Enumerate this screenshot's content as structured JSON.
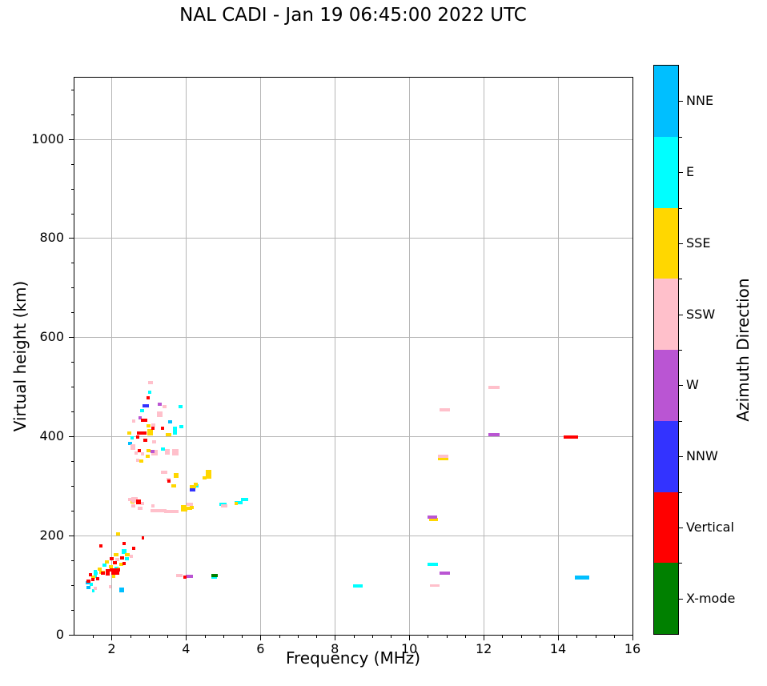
{
  "title": "NAL CADI - Jan 19 06:45:00 2022 UTC",
  "chart_data": {
    "type": "scatter",
    "title": "NAL CADI - Jan 19 06:45:00 2022 UTC",
    "xlabel": "Frequency (MHz)",
    "ylabel": "Virtual height (km)",
    "xlim": [
      1,
      16
    ],
    "ylim": [
      0,
      1124
    ],
    "xticks": [
      2,
      4,
      6,
      8,
      10,
      12,
      14,
      16
    ],
    "yticks": [
      0,
      200,
      400,
      600,
      800,
      1000
    ],
    "x_minor_step_mhz": 0.5,
    "y_minor_step_km": 50,
    "grid": true,
    "grid_color": "#b6b6b6",
    "marker": "square",
    "colorbar": {
      "label": "Azimuth Direction",
      "entries_top_to_bottom": [
        {
          "label": "NNE",
          "color": "#00BFFF"
        },
        {
          "label": "E",
          "color": "#00FFFF"
        },
        {
          "label": "SSE",
          "color": "#FFD700"
        },
        {
          "label": "SSW",
          "color": "#FFC0CB"
        },
        {
          "label": "W",
          "color": "#BA55D3"
        },
        {
          "label": "NNW",
          "color": "#3333FF"
        },
        {
          "label": "Vertical",
          "color": "#FF0000"
        },
        {
          "label": "X-mode",
          "color": "#008000"
        }
      ]
    },
    "series": [
      {
        "name": "NNE",
        "color": "#00BFFF",
        "points": [
          [
            3.58,
            429,
            5
          ],
          [
            2.5,
            386,
            5
          ],
          [
            1.35,
            104,
            5
          ],
          [
            1.38,
            95,
            5
          ],
          [
            2.28,
            90,
            6,
            6
          ],
          [
            14.65,
            114,
            18,
            5
          ]
        ]
      },
      {
        "name": "E",
        "color": "#00FFFF",
        "points": [
          [
            3.02,
            489,
            4
          ],
          [
            3.86,
            460,
            5
          ],
          [
            2.81,
            451,
            5
          ],
          [
            3.88,
            420,
            5
          ],
          [
            3.7,
            412,
            5,
            10
          ],
          [
            2.55,
            397,
            4
          ],
          [
            3.37,
            374,
            5
          ],
          [
            4.28,
            300,
            5
          ],
          [
            5.0,
            262,
            9
          ],
          [
            5.42,
            266,
            10
          ],
          [
            5.57,
            272,
            9
          ],
          [
            2.33,
            167,
            6,
            6
          ],
          [
            2.42,
            152,
            5
          ],
          [
            1.8,
            139,
            5
          ],
          [
            2.14,
            134,
            5
          ],
          [
            1.56,
            124,
            5
          ],
          [
            1.55,
            127,
            4
          ],
          [
            1.55,
            117,
            4
          ],
          [
            1.45,
            101,
            4
          ],
          [
            1.5,
            88,
            3
          ],
          [
            4.76,
            115,
            7,
            3
          ],
          [
            8.62,
            97,
            12,
            4
          ],
          [
            10.62,
            141,
            13,
            4
          ]
        ]
      },
      {
        "name": "SSE",
        "color": "#FFD700",
        "points": [
          [
            3.0,
            421,
            5
          ],
          [
            2.48,
            407,
            5
          ],
          [
            3.04,
            408,
            7,
            8
          ],
          [
            3.52,
            403,
            7
          ],
          [
            2.98,
            371,
            5
          ],
          [
            2.97,
            359,
            5
          ],
          [
            2.79,
            350,
            5
          ],
          [
            3.73,
            320,
            6,
            6
          ],
          [
            3.67,
            300,
            6
          ],
          [
            4.6,
            323,
            7,
            11
          ],
          [
            4.5,
            316,
            5
          ],
          [
            4.27,
            303,
            5
          ],
          [
            4.18,
            298,
            8
          ],
          [
            3.95,
            252,
            8
          ],
          [
            4.05,
            254,
            10
          ],
          [
            3.93,
            258,
            7
          ],
          [
            4.15,
            256,
            5
          ],
          [
            2.55,
            268,
            5
          ],
          [
            5.35,
            265,
            4
          ],
          [
            2.18,
            203,
            5
          ],
          [
            2.12,
            160,
            6
          ],
          [
            2.42,
            161,
            6
          ],
          [
            1.88,
            147,
            5
          ],
          [
            2.25,
            142,
            5
          ],
          [
            1.97,
            136,
            5
          ],
          [
            1.67,
            131,
            5
          ],
          [
            2.18,
            131,
            4
          ],
          [
            1.5,
            115,
            5
          ],
          [
            1.75,
            125,
            7
          ],
          [
            2.05,
            117,
            4
          ],
          [
            10.9,
            355,
            13,
            4
          ],
          [
            10.65,
            232,
            11,
            4
          ]
        ]
      },
      {
        "name": "SSW",
        "color": "#FFC0CB",
        "points": [
          [
            3.05,
            508,
            6
          ],
          [
            3.43,
            460,
            5
          ],
          [
            3.3,
            445,
            7,
            7
          ],
          [
            2.59,
            431,
            4
          ],
          [
            3.13,
            423,
            5
          ],
          [
            3.15,
            389,
            5
          ],
          [
            2.57,
            378,
            6,
            7
          ],
          [
            3.2,
            370,
            4
          ],
          [
            3.5,
            368,
            6,
            7
          ],
          [
            3.71,
            368,
            8,
            8
          ],
          [
            2.65,
            366,
            4
          ],
          [
            2.83,
            364,
            4
          ],
          [
            3.15,
            364,
            8
          ],
          [
            2.7,
            352,
            4
          ],
          [
            3.45,
            328,
            5
          ],
          [
            3.37,
            327,
            4
          ],
          [
            3.52,
            313,
            5
          ],
          [
            4.1,
            262,
            8
          ],
          [
            5.02,
            259,
            8
          ],
          [
            3.15,
            249,
            10
          ],
          [
            3.35,
            249,
            12
          ],
          [
            3.55,
            248,
            12
          ],
          [
            3.72,
            248,
            8
          ],
          [
            2.49,
            273,
            5
          ],
          [
            2.62,
            272,
            8,
            7
          ],
          [
            2.83,
            265,
            4
          ],
          [
            2.58,
            259,
            5
          ],
          [
            2.77,
            255,
            6
          ],
          [
            3.1,
            260,
            4
          ],
          [
            2.52,
            157,
            4
          ],
          [
            2.15,
            151,
            5
          ],
          [
            1.57,
            93,
            4
          ],
          [
            1.95,
            96,
            3
          ],
          [
            3.82,
            118,
            8
          ],
          [
            10.68,
            99,
            12,
            3
          ],
          [
            10.9,
            359,
            13,
            4
          ],
          [
            10.95,
            453,
            13,
            4
          ],
          [
            12.28,
            499,
            14,
            4
          ]
        ]
      },
      {
        "name": "W",
        "color": "#BA55D3",
        "points": [
          [
            3.3,
            465,
            5
          ],
          [
            2.76,
            437,
            4
          ],
          [
            3.09,
            369,
            5
          ],
          [
            4.08,
            117,
            9
          ],
          [
            10.95,
            123,
            13,
            4
          ],
          [
            10.62,
            237,
            12,
            4
          ],
          [
            12.28,
            403,
            14,
            4
          ]
        ]
      },
      {
        "name": "NNW",
        "color": "#3333FF",
        "points": [
          [
            2.92,
            462,
            8
          ],
          [
            4.17,
            292,
            7
          ]
        ]
      },
      {
        "name": "Vertical",
        "color": "#FF0000",
        "points": [
          [
            2.98,
            478,
            4
          ],
          [
            2.87,
            432,
            8
          ],
          [
            3.1,
            416,
            4
          ],
          [
            3.37,
            416,
            4
          ],
          [
            2.8,
            407,
            12
          ],
          [
            2.7,
            399,
            4
          ],
          [
            2.91,
            392,
            5
          ],
          [
            2.74,
            371,
            4
          ],
          [
            3.53,
            310,
            4
          ],
          [
            2.73,
            267,
            6,
            6
          ],
          [
            2.83,
            195,
            3
          ],
          [
            2.33,
            183,
            4
          ],
          [
            1.71,
            179,
            4
          ],
          [
            2.59,
            174,
            4
          ],
          [
            2.29,
            155,
            5
          ],
          [
            2.01,
            152,
            5
          ],
          [
            2.09,
            144,
            5
          ],
          [
            2.34,
            143,
            4
          ],
          [
            1.9,
            129,
            5
          ],
          [
            1.77,
            123,
            5
          ],
          [
            2.1,
            123,
            10
          ],
          [
            2.08,
            130,
            13
          ],
          [
            1.62,
            113,
            4
          ],
          [
            1.37,
            108,
            5
          ],
          [
            1.44,
            120,
            4
          ],
          [
            1.5,
            111,
            4
          ],
          [
            1.9,
            122,
            5
          ],
          [
            3.96,
            115,
            4
          ],
          [
            14.35,
            398,
            18,
            4
          ]
        ]
      },
      {
        "name": "X-mode",
        "color": "#008000",
        "points": [
          [
            4.76,
            118,
            8,
            4
          ]
        ]
      }
    ]
  }
}
